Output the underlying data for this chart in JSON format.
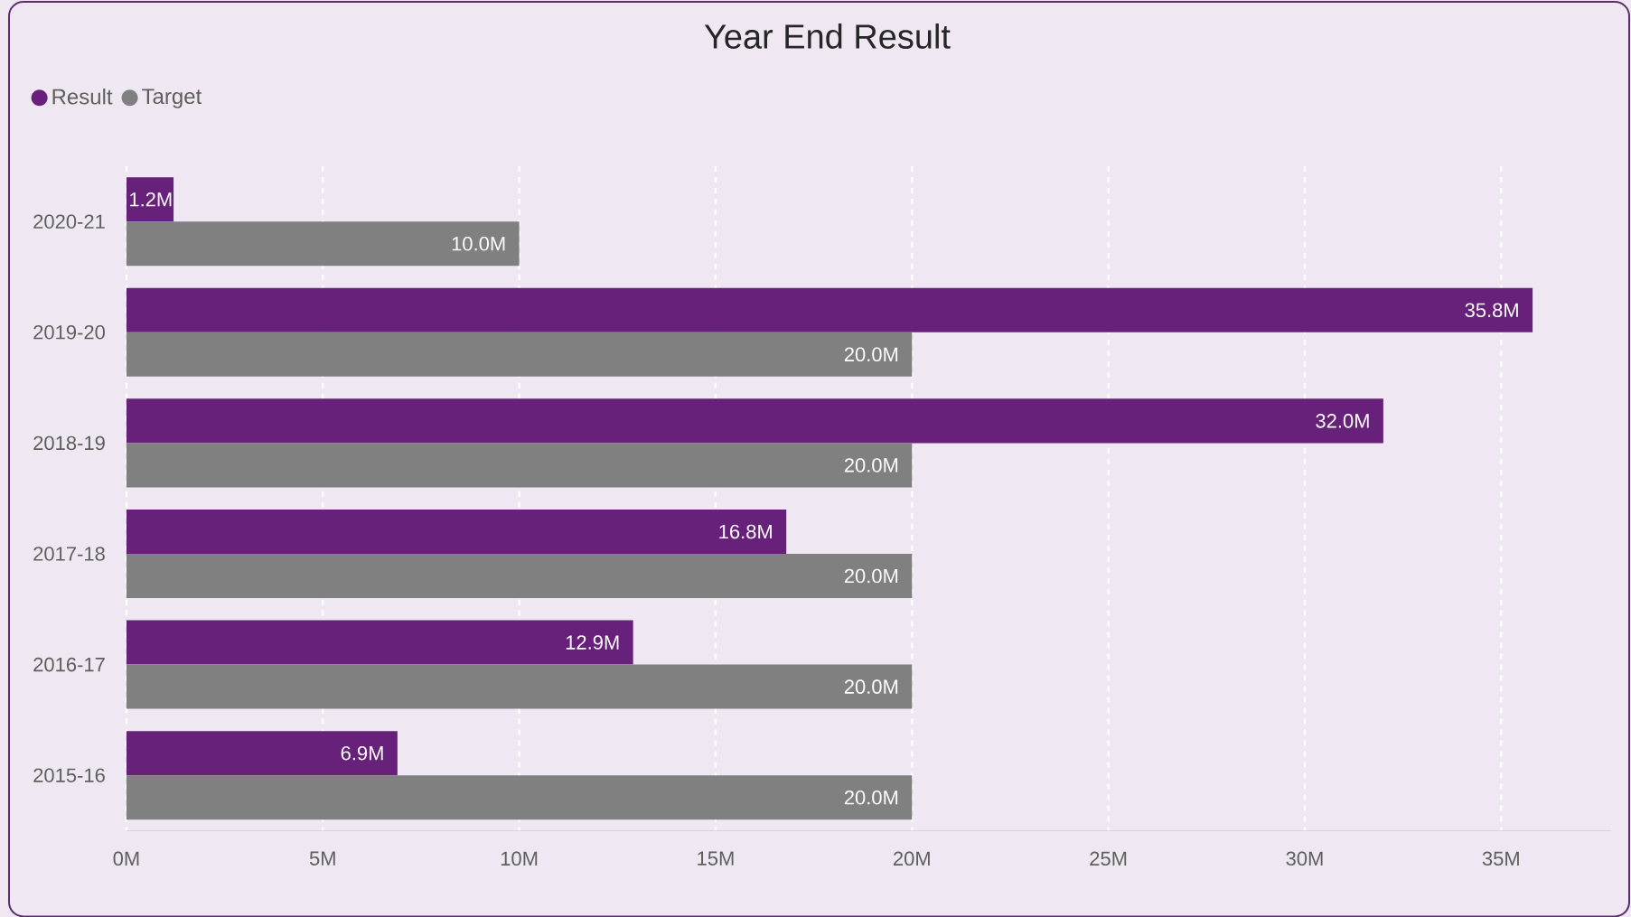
{
  "chart_data": {
    "type": "bar",
    "orientation": "horizontal",
    "title": "Year End Result",
    "categories": [
      "2020-21",
      "2019-20",
      "2018-19",
      "2017-18",
      "2016-17",
      "2015-16"
    ],
    "series": [
      {
        "name": "Result",
        "color": "#68217a",
        "values": [
          1.2,
          35.8,
          32.0,
          16.8,
          12.9,
          6.9
        ],
        "value_labels": [
          "1.2M",
          "35.8M",
          "32.0M",
          "16.8M",
          "12.9M",
          "6.9M"
        ]
      },
      {
        "name": "Target",
        "color": "#808080",
        "values": [
          10.0,
          20.0,
          20.0,
          20.0,
          20.0,
          20.0
        ],
        "value_labels": [
          "10.0M",
          "20.0M",
          "20.0M",
          "20.0M",
          "20.0M",
          "20.0M"
        ]
      }
    ],
    "xlim": [
      0,
      37.8
    ],
    "xticks": [
      {
        "value": 0,
        "label": "0M"
      },
      {
        "value": 5,
        "label": "5M"
      },
      {
        "value": 10,
        "label": "10M"
      },
      {
        "value": 15,
        "label": "15M"
      },
      {
        "value": 20,
        "label": "20M"
      },
      {
        "value": 25,
        "label": "25M"
      },
      {
        "value": 30,
        "label": "30M"
      },
      {
        "value": 35,
        "label": "35M"
      }
    ],
    "grid": "x",
    "legend": "top left"
  }
}
